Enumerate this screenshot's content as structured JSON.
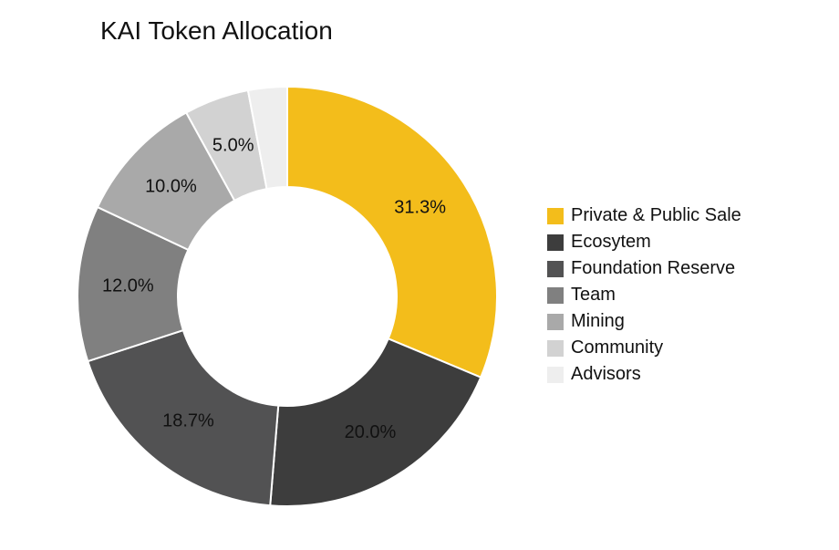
{
  "chart": {
    "type": "donut",
    "title": "KAI Token Allocation",
    "title_fontsize": 28,
    "title_color": "#111111",
    "background_color": "#ffffff",
    "stroke_color": "#ffffff",
    "stroke_width": 2,
    "outer_radius": 230,
    "inner_radius": 120,
    "label_radius": 175,
    "label_fontsize": 20,
    "label_color": "#111111",
    "start_angle_deg": -90,
    "slices": [
      {
        "name": "Private & Public Sale",
        "value": 31.3,
        "label": "31.3%",
        "color": "#f3bd1b",
        "show_label": true
      },
      {
        "name": "Ecosytem",
        "value": 20.0,
        "label": "20.0%",
        "color": "#3d3d3d",
        "show_label": true
      },
      {
        "name": "Foundation Reserve",
        "value": 18.7,
        "label": "18.7%",
        "color": "#525253",
        "show_label": true
      },
      {
        "name": "Team",
        "value": 12.0,
        "label": "12.0%",
        "color": "#808080",
        "show_label": true
      },
      {
        "name": "Mining",
        "value": 10.0,
        "label": "10.0%",
        "color": "#a9a9a9",
        "show_label": true
      },
      {
        "name": "Community",
        "value": 5.0,
        "label": "5.0%",
        "color": "#d2d2d2",
        "show_label": true
      },
      {
        "name": "Advisors",
        "value": 3.0,
        "label": "3.0%",
        "color": "#eeeeee",
        "show_label": false
      }
    ],
    "legend": {
      "swatch_size": 18,
      "fontsize": 20,
      "color": "#111111"
    }
  }
}
